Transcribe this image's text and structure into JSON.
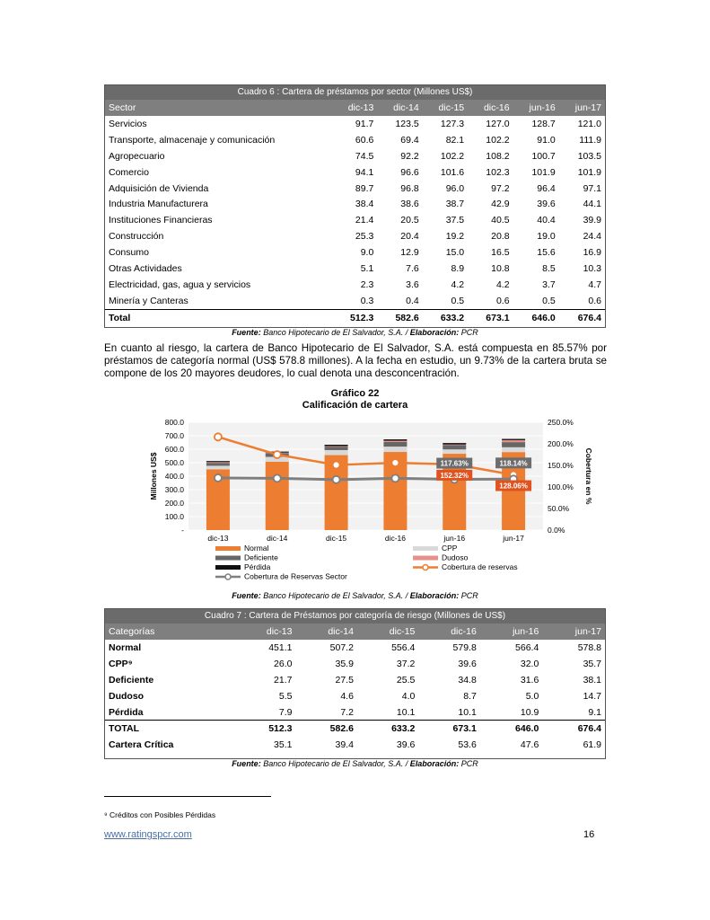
{
  "table6": {
    "caption": "Cuadro 6 : Cartera de préstamos por sector  (Millones US$)",
    "headers": [
      "Sector",
      "dic-13",
      "dic-14",
      "dic-15",
      "dic-16",
      "jun-16",
      "jun-17"
    ],
    "rows": [
      [
        "Servicios",
        "91.7",
        "123.5",
        "127.3",
        "127.0",
        "128.7",
        "121.0"
      ],
      [
        "Transporte, almacenaje y comunicación",
        "60.6",
        "69.4",
        "82.1",
        "102.2",
        "91.0",
        "111.9"
      ],
      [
        "Agropecuario",
        "74.5",
        "92.2",
        "102.2",
        "108.2",
        "100.7",
        "103.5"
      ],
      [
        "Comercio",
        "94.1",
        "96.6",
        "101.6",
        "102.3",
        "101.9",
        "101.9"
      ],
      [
        "Adquisición de Vivienda",
        "89.7",
        "96.8",
        "96.0",
        "97.2",
        "96.4",
        "97.1"
      ],
      [
        "Industria Manufacturera",
        "38.4",
        "38.6",
        "38.7",
        "42.9",
        "39.6",
        "44.1"
      ],
      [
        "Instituciones Financieras",
        "21.4",
        "20.5",
        "37.5",
        "40.5",
        "40.4",
        "39.9"
      ],
      [
        "Construcción",
        "25.3",
        "20.4",
        "19.2",
        "20.8",
        "19.0",
        "24.4"
      ],
      [
        "Consumo",
        "9.0",
        "12.9",
        "15.0",
        "16.5",
        "15.6",
        "16.9"
      ],
      [
        "Otras Actividades",
        "5.1",
        "7.6",
        "8.9",
        "10.8",
        "8.5",
        "10.3"
      ],
      [
        "Electricidad, gas, agua y servicios",
        "2.3",
        "3.6",
        "4.2",
        "4.2",
        "3.7",
        "4.7"
      ],
      [
        "Minería y Canteras",
        "0.3",
        "0.4",
        "0.5",
        "0.6",
        "0.5",
        "0.6"
      ]
    ],
    "total": [
      "Total",
      "512.3",
      "582.6",
      "633.2",
      "673.1",
      "646.0",
      "676.4"
    ],
    "source_label": "Fuente:",
    "source_text": " Banco Hipotecario de El Salvador, S.A. / ",
    "elab_label": "Elaboración:",
    "elab_text": " PCR"
  },
  "paragraph": "En cuanto al riesgo, la cartera de Banco Hipotecario de El Salvador, S.A. está compuesta en 85.57% por préstamos de categoría normal (US$ 578.8 millones). A la fecha en estudio, un 9.73% de la cartera bruta se compone de los 20 mayores deudores, lo cual denota una desconcentración.",
  "chart": {
    "heading": "Gráfico 22",
    "title": "Calificación de cartera",
    "source_label": "Fuente:",
    "source_text": " Banco Hipotecario de El Salvador, S.A. / ",
    "elab_label": "Elaboración:",
    "elab_text": " PCR"
  },
  "chart_data": {
    "type": "bar",
    "categories": [
      "dic-13",
      "dic-14",
      "dic-15",
      "dic-16",
      "jun-16",
      "jun-17"
    ],
    "stacked": true,
    "ylabel": "Millones US$",
    "y2label": "Cobertura en %",
    "ylim": [
      0,
      800
    ],
    "y2lim": [
      0,
      250
    ],
    "yticks": [
      "-",
      "100.0",
      "200.0",
      "300.0",
      "400.0",
      "500.0",
      "600.0",
      "700.0",
      "800.0"
    ],
    "y2ticks": [
      "0.0%",
      "50.0%",
      "100.0%",
      "150.0%",
      "200.0%",
      "250.0%"
    ],
    "grid": true,
    "legend_position": "bottom",
    "series": [
      {
        "name": "Normal",
        "color": "#ed7d31",
        "values": [
          451.1,
          507.2,
          556.4,
          579.8,
          566.4,
          578.8
        ]
      },
      {
        "name": "CPP",
        "color": "#d9d9d9",
        "values": [
          26.0,
          35.9,
          37.2,
          39.6,
          32.0,
          35.7
        ]
      },
      {
        "name": "Deficiente",
        "color": "#666666",
        "values": [
          21.7,
          27.5,
          25.5,
          34.8,
          31.6,
          38.1
        ]
      },
      {
        "name": "Dudoso",
        "color": "#e6908a",
        "values": [
          5.5,
          4.6,
          4.0,
          8.7,
          5.0,
          14.7
        ]
      },
      {
        "name": "Pérdida",
        "color": "#111111",
        "values": [
          7.9,
          7.2,
          10.1,
          10.1,
          10.9,
          9.1
        ]
      }
    ],
    "lines": [
      {
        "name": "Cobertura de reservas",
        "color": "#ed7d31",
        "axis": "right",
        "values": [
          216,
          175,
          151,
          156,
          152.32,
          128.06
        ]
      },
      {
        "name": "Cobertura de Reservas Sector",
        "color": "#7f7f7f",
        "axis": "right",
        "values": [
          121,
          120,
          117,
          120,
          117.63,
          118.14
        ]
      }
    ],
    "annotations": [
      {
        "text": "117.63%",
        "category": "jun-16",
        "series": "Cobertura de Reservas Sector"
      },
      {
        "text": "118.14%",
        "category": "jun-17",
        "series": "Cobertura de Reservas Sector"
      },
      {
        "text": "152.32%",
        "category": "jun-16",
        "series": "Cobertura de reservas"
      },
      {
        "text": "128.06%",
        "category": "jun-17",
        "series": "Cobertura de reservas"
      }
    ],
    "legend": [
      "Normal",
      "CPP",
      "Deficiente",
      "Dudoso",
      "Pérdida",
      "Cobertura de reservas",
      "Cobertura de Reservas Sector"
    ]
  },
  "table7": {
    "caption": "Cuadro 7 : Cartera de Préstamos por categoría de riesgo  (Millones de US$)",
    "headers": [
      "Categorías",
      "dic-13",
      "dic-14",
      "dic-15",
      "dic-16",
      "jun-16",
      "jun-17"
    ],
    "rows": [
      [
        "Normal",
        "451.1",
        "507.2",
        "556.4",
        "579.8",
        "566.4",
        "578.8"
      ],
      [
        "CPP⁹",
        "26.0",
        "35.9",
        "37.2",
        "39.6",
        "32.0",
        "35.7"
      ],
      [
        "Deficiente",
        "21.7",
        "27.5",
        "25.5",
        "34.8",
        "31.6",
        "38.1"
      ],
      [
        "Dudoso",
        "5.5",
        "4.6",
        "4.0",
        "8.7",
        "5.0",
        "14.7"
      ],
      [
        "Pérdida",
        "7.9",
        "7.2",
        "10.1",
        "10.1",
        "10.9",
        "9.1"
      ]
    ],
    "total": [
      "TOTAL",
      "512.3",
      "582.6",
      "633.2",
      "673.1",
      "646.0",
      "676.4"
    ],
    "critica": [
      "Cartera Crítica",
      "35.1",
      "39.4",
      "39.6",
      "53.6",
      "47.6",
      "61.9"
    ],
    "source_label": "Fuente:",
    "source_text": " Banco Hipotecario de El Salvador, S.A. / ",
    "elab_label": "Elaboración:",
    "elab_text": " PCR"
  },
  "footnote": "⁹ Créditos con Posibles Pérdidas",
  "footer": {
    "link": "www.ratingspcr.com",
    "page": "16"
  }
}
